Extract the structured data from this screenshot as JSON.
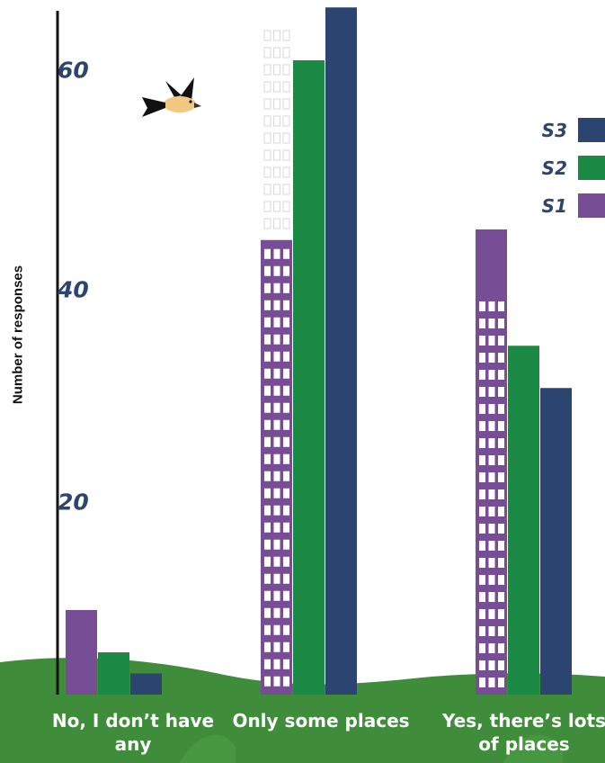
{
  "chart_data": {
    "type": "bar",
    "title": "",
    "ylabel": "Number of responses",
    "xlabel": "",
    "ylim": [
      0,
      65
    ],
    "yticks": [
      20,
      40,
      60
    ],
    "categories": [
      "No, I don’t have any",
      "Only some places",
      "Yes, there’s lots of places"
    ],
    "series": [
      {
        "name": "S1",
        "color": "#774e95",
        "values": [
          8,
          43,
          44
        ]
      },
      {
        "name": "S2",
        "color": "#1b8a45",
        "values": [
          4,
          60,
          33
        ]
      },
      {
        "name": "S3",
        "color": "#2b4470",
        "values": [
          2,
          65,
          29
        ]
      }
    ],
    "legend_position": "right",
    "legend_order": [
      "S3",
      "S2",
      "S1"
    ]
  },
  "decorations": {
    "bird": "bird-icon",
    "ground": "grass-hill",
    "ground_color": "#3f8d3a",
    "bar_style": "building-windows"
  }
}
